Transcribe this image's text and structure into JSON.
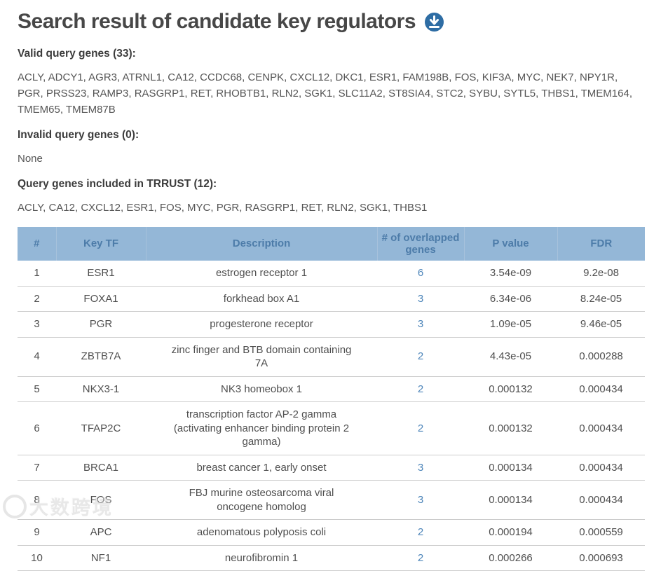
{
  "header": {
    "title": "Search result of candidate key regulators",
    "download_icon": "download-icon"
  },
  "colors": {
    "accent_blue": "#2e6da4",
    "table_header_bg": "#94b7d7",
    "table_header_text": "#4d7ca9",
    "link_blue": "#4e86ba",
    "title_text": "#474747",
    "body_text": "#555555",
    "row_border": "#cccccc"
  },
  "sections": {
    "valid": {
      "heading": "Valid query genes (33):",
      "genes": "ACLY, ADCY1, AGR3, ATRNL1, CA12, CCDC68, CENPK, CXCL12, DKC1, ESR1, FAM198B, FOS, KIF3A, MYC, NEK7, NPY1R, PGR, PRSS23, RAMP3, RASGRP1, RET, RHOBTB1, RLN2, SGK1, SLC11A2, ST8SIA4, STC2, SYBU, SYTL5, THBS1, TMEM164, TMEM65, TMEM87B"
    },
    "invalid": {
      "heading": "Invalid query genes (0):",
      "genes": "None"
    },
    "trrust": {
      "heading": "Query genes included in TRRUST (12):",
      "genes": "ACLY, CA12, CXCL12, ESR1, FOS, MYC, PGR, RASGRP1, RET, RLN2, SGK1, THBS1"
    }
  },
  "table": {
    "headers": [
      "#",
      "Key TF",
      "Description",
      "# of overlapped genes",
      "P value",
      "FDR"
    ],
    "rows": [
      {
        "num": "1",
        "tf": "ESR1",
        "desc": "estrogen receptor 1",
        "overlap": "6",
        "pvalue": "3.54e-09",
        "fdr": "9.2e-08"
      },
      {
        "num": "2",
        "tf": "FOXA1",
        "desc": "forkhead box A1",
        "overlap": "3",
        "pvalue": "6.34e-06",
        "fdr": "8.24e-05"
      },
      {
        "num": "3",
        "tf": "PGR",
        "desc": "progesterone receptor",
        "overlap": "3",
        "pvalue": "1.09e-05",
        "fdr": "9.46e-05"
      },
      {
        "num": "4",
        "tf": "ZBTB7A",
        "desc": "zinc finger and BTB domain containing 7A",
        "overlap": "2",
        "pvalue": "4.43e-05",
        "fdr": "0.000288"
      },
      {
        "num": "5",
        "tf": "NKX3-1",
        "desc": "NK3 homeobox 1",
        "overlap": "2",
        "pvalue": "0.000132",
        "fdr": "0.000434"
      },
      {
        "num": "6",
        "tf": "TFAP2C",
        "desc": "transcription factor AP-2 gamma (activating enhancer binding protein 2 gamma)",
        "overlap": "2",
        "pvalue": "0.000132",
        "fdr": "0.000434"
      },
      {
        "num": "7",
        "tf": "BRCA1",
        "desc": "breast cancer 1, early onset",
        "overlap": "3",
        "pvalue": "0.000134",
        "fdr": "0.000434"
      },
      {
        "num": "8",
        "tf": "FOS",
        "desc": "FBJ murine osteosarcoma viral oncogene homolog",
        "overlap": "3",
        "pvalue": "0.000134",
        "fdr": "0.000434"
      },
      {
        "num": "9",
        "tf": "APC",
        "desc": "adenomatous polyposis coli",
        "overlap": "2",
        "pvalue": "0.000194",
        "fdr": "0.000559"
      },
      {
        "num": "10",
        "tf": "NF1",
        "desc": "neurofibromin 1",
        "overlap": "2",
        "pvalue": "0.000266",
        "fdr": "0.000693"
      }
    ]
  },
  "watermark": {
    "text": "大数跨境"
  }
}
